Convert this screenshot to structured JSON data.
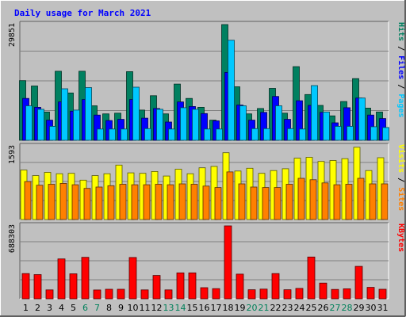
{
  "chart_data": {
    "type": "bar",
    "title": "Daily usage for March 2021",
    "categories": [
      "1",
      "2",
      "3",
      "4",
      "5",
      "6",
      "7",
      "8",
      "9",
      "10",
      "11",
      "12",
      "13",
      "14",
      "15",
      "16",
      "17",
      "18",
      "19",
      "20",
      "21",
      "22",
      "23",
      "24",
      "25",
      "26",
      "27",
      "28",
      "29",
      "30",
      "31"
    ],
    "weekend_days": [
      6,
      7,
      13,
      14,
      20,
      21,
      27,
      28
    ],
    "panels": [
      {
        "name": "hits-files-pages",
        "ymax_label": "29851",
        "ymax": 29851,
        "legend": [
          {
            "text": "Pages",
            "color": "#00c8ff"
          },
          {
            "text": "Files",
            "color": "#0000ff"
          },
          {
            "text": "Hits",
            "color": "#008060"
          }
        ],
        "series": [
          {
            "name": "Hits",
            "color": "#008060",
            "values": [
              15400,
              14000,
              7300,
              17800,
              12200,
              17800,
              8900,
              6800,
              7000,
              17700,
              7800,
              11500,
              6800,
              14500,
              10800,
              8500,
              5200,
              29851,
              13800,
              6800,
              8200,
              13400,
              7000,
              19000,
              11800,
              9000,
              6300,
              10000,
              15900,
              8300,
              7300
            ]
          },
          {
            "name": "Files",
            "color": "#0000ff",
            "values": [
              10800,
              8500,
              5200,
              9900,
              7500,
              10500,
              6500,
              5100,
              5400,
              10500,
              5700,
              8200,
              4700,
              9900,
              8700,
              6900,
              5000,
              17500,
              9100,
              5200,
              7200,
              11300,
              5400,
              10200,
              9000,
              7200,
              4500,
              8400,
              10900,
              6500,
              5600
            ]
          },
          {
            "name": "Pages",
            "color": "#00c8ff",
            "values": [
              8900,
              8000,
              3600,
              13300,
              7800,
              13600,
              2900,
              2900,
              2900,
              13700,
              3000,
              8000,
              2900,
              8400,
              8000,
              2900,
              2900,
              25800,
              8900,
              3000,
              3000,
              8900,
              3000,
              2900,
              14100,
              7300,
              3600,
              3600,
              10900,
              3500,
              3300
            ]
          }
        ]
      },
      {
        "name": "visits-sites",
        "ymax_label": "1593",
        "ymax": 1593,
        "legend": [
          {
            "text": "Sites",
            "color": "#ff8000"
          },
          {
            "text": "Visits",
            "color": "#ffff00"
          }
        ],
        "series": [
          {
            "name": "Visits",
            "color": "#ffff00",
            "values": [
              1080,
              960,
              1030,
              1000,
              1010,
              860,
              960,
              1000,
              1190,
              1020,
              1010,
              1050,
              950,
              1100,
              1000,
              1130,
              1160,
              1460,
              1060,
              1120,
              1010,
              1070,
              1110,
              1340,
              1360,
              1270,
              1290,
              1330,
              1580,
              1070,
              1350
            ]
          },
          {
            "name": "Sites",
            "color": "#ff8000",
            "values": [
              830,
              750,
              770,
              790,
              760,
              680,
              710,
              740,
              770,
              760,
              760,
              770,
              760,
              780,
              770,
              730,
              700,
              1040,
              780,
              710,
              700,
              700,
              770,
              900,
              870,
              800,
              760,
              770,
              900,
              780,
              780
            ]
          }
        ]
      },
      {
        "name": "kbytes",
        "ymax_label": "688303",
        "ymax": 688303,
        "legend": [
          {
            "text": "KBytes",
            "color": "#ff0000"
          }
        ],
        "series": [
          {
            "name": "KBytes",
            "color": "#ff0000",
            "values": [
              238000,
              228000,
              84000,
              376000,
              236000,
              391000,
              83000,
              90000,
              90000,
              390000,
              84000,
              220000,
              84000,
              245000,
              245000,
              105000,
              96000,
              688303,
              233000,
              85000,
              91000,
              238000,
              85000,
              98000,
              394000,
              148000,
              88000,
              94000,
              306000,
              108000,
              90000
            ]
          }
        ]
      }
    ]
  }
}
